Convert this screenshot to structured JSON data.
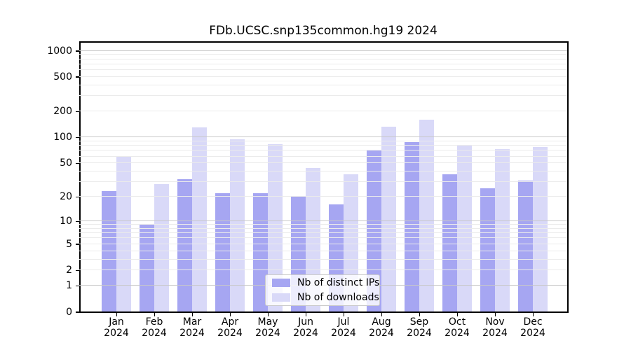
{
  "chart_data": {
    "type": "bar",
    "title": "FDb.UCSC.snp135common.hg19 2024",
    "y_scale": "log1p",
    "ylim": [
      0,
      1000
    ],
    "y_ticks": [
      0,
      1,
      2,
      5,
      10,
      20,
      50,
      100,
      200,
      500,
      1000
    ],
    "grid": true,
    "legend_position": "lower center",
    "x_categories": [
      {
        "month": "Jan",
        "year": "2024"
      },
      {
        "month": "Feb",
        "year": "2024"
      },
      {
        "month": "Mar",
        "year": "2024"
      },
      {
        "month": "Apr",
        "year": "2024"
      },
      {
        "month": "May",
        "year": "2024"
      },
      {
        "month": "Jun",
        "year": "2024"
      },
      {
        "month": "Jul",
        "year": "2024"
      },
      {
        "month": "Aug",
        "year": "2024"
      },
      {
        "month": "Sep",
        "year": "2024"
      },
      {
        "month": "Oct",
        "year": "2024"
      },
      {
        "month": "Nov",
        "year": "2024"
      },
      {
        "month": "Dec",
        "year": "2024"
      }
    ],
    "series": [
      {
        "name": "Nb of distinct IPs",
        "color": "#a6a6f2",
        "values": [
          23,
          9,
          32,
          22,
          22,
          20,
          16,
          71,
          88,
          37,
          25,
          31
        ]
      },
      {
        "name": "Nb of downloads",
        "color": "#d9d9f8",
        "values": [
          60,
          28,
          130,
          94,
          83,
          44,
          37,
          132,
          159,
          81,
          72,
          77
        ]
      }
    ],
    "colors": {
      "major_grid": "#c8c8c8",
      "minor_grid": "#ebebeb",
      "axis": "#000000",
      "background": "#ffffff"
    }
  }
}
